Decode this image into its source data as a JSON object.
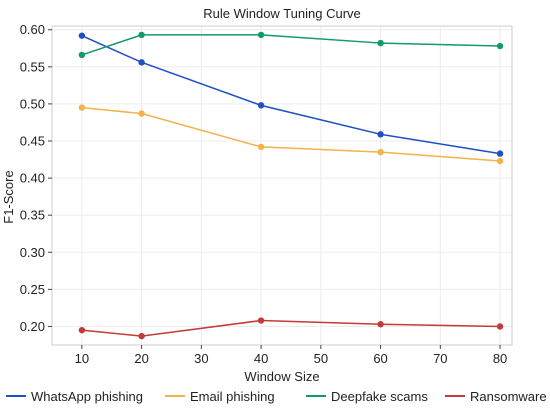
{
  "chart_data": {
    "type": "line",
    "title": "Rule Window Tuning Curve",
    "xlabel": "Window Size",
    "ylabel": "F1-Score",
    "x": [
      10,
      20,
      40,
      60,
      80
    ],
    "xlim": [
      5,
      82
    ],
    "ylim": [
      0.175,
      0.605
    ],
    "xticks": [
      "10",
      "20",
      "30",
      "40",
      "50",
      "60",
      "70",
      "80"
    ],
    "yticks": [
      "0.20",
      "0.25",
      "0.30",
      "0.35",
      "0.40",
      "0.45",
      "0.50",
      "0.55",
      "0.60"
    ],
    "grid": true,
    "legend_position": "bottom",
    "series": [
      {
        "name": "WhatsApp phishing",
        "color": "#1f4fc4",
        "values": [
          0.592,
          0.556,
          0.498,
          0.459,
          0.433
        ]
      },
      {
        "name": "Email phishing",
        "color": "#f2b24c",
        "values": [
          0.495,
          0.487,
          0.442,
          0.435,
          0.423
        ]
      },
      {
        "name": "Deepfake scams",
        "color": "#14996a",
        "values": [
          0.566,
          0.593,
          0.593,
          0.582,
          0.578
        ]
      },
      {
        "name": "Ransomware",
        "color": "#c33a3a",
        "values": [
          0.195,
          0.187,
          0.208,
          0.203,
          0.2
        ]
      }
    ]
  }
}
